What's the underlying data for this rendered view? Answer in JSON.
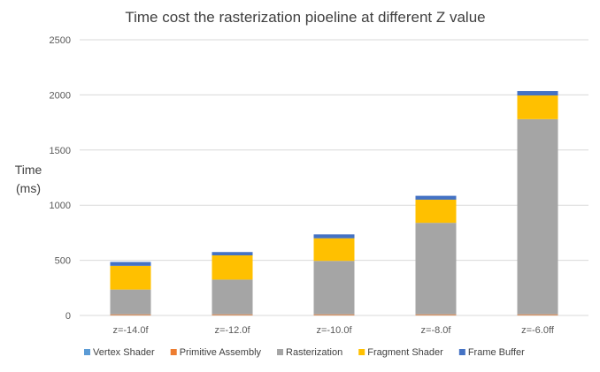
{
  "chart_data": {
    "type": "bar",
    "stacked": true,
    "title": "Time cost the rasterization pioeline at different Z value",
    "xlabel": "",
    "ylabel_lines": [
      "Time",
      "(ms)"
    ],
    "ylim": [
      0,
      2500
    ],
    "yticks": [
      0,
      500,
      1000,
      1500,
      2000,
      2500
    ],
    "grid": true,
    "legend_position": "bottom",
    "categories": [
      "z=-14.0f",
      "z=-12.0f",
      "z=-10.0f",
      "z=-8.0f",
      "z=-6.0ff"
    ],
    "series": [
      {
        "name": "Vertex Shader",
        "color": "#5B9BD5",
        "values": [
          2,
          2,
          2,
          2,
          2
        ]
      },
      {
        "name": "Primitive Assembly",
        "color": "#ED7D31",
        "values": [
          8,
          8,
          8,
          8,
          8
        ]
      },
      {
        "name": "Rasterization",
        "color": "#A5A5A5",
        "values": [
          225,
          315,
          485,
          830,
          1770
        ]
      },
      {
        "name": "Fragment Shader",
        "color": "#FFC000",
        "values": [
          215,
          220,
          205,
          210,
          215
        ]
      },
      {
        "name": "Frame Buffer",
        "color": "#4472C4",
        "values": [
          35,
          30,
          35,
          35,
          40
        ]
      }
    ]
  }
}
